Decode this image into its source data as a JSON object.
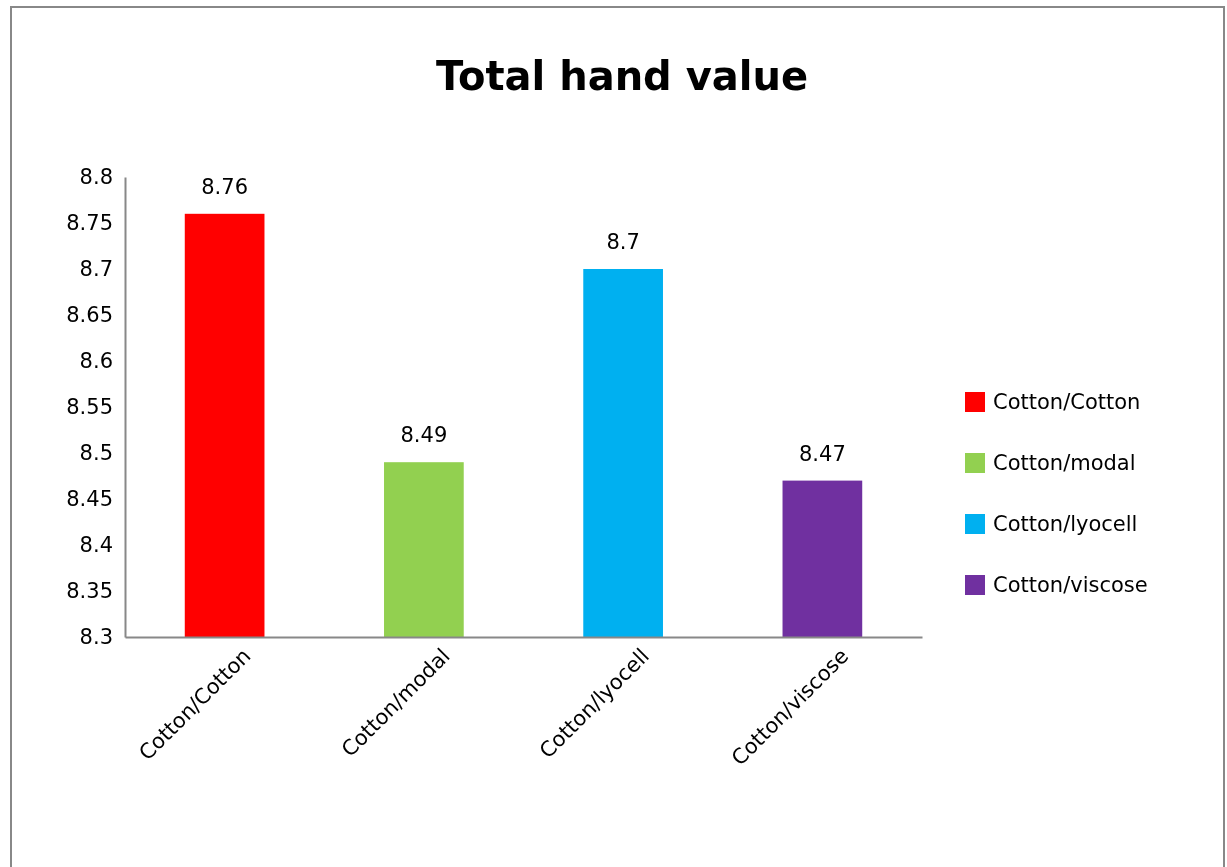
{
  "chart_data": {
    "type": "bar",
    "title": "Total hand value",
    "categories": [
      "Cotton/Cotton",
      "Cotton/modal",
      "Cotton/lyocell",
      "Cotton/viscose"
    ],
    "series": [
      {
        "name": "Cotton/Cotton",
        "color": "#ff0000",
        "values": [
          8.76,
          null,
          null,
          null
        ]
      },
      {
        "name": "Cotton/modal",
        "color": "#92d050",
        "values": [
          null,
          8.49,
          null,
          null
        ]
      },
      {
        "name": "Cotton/lyocell",
        "color": "#00b0f0",
        "values": [
          null,
          null,
          8.7,
          null
        ]
      },
      {
        "name": "Cotton/viscose",
        "color": "#7030a0",
        "values": [
          null,
          null,
          null,
          8.47
        ]
      }
    ],
    "ylim": [
      8.3,
      8.8
    ],
    "yticks": [
      8.3,
      8.35,
      8.4,
      8.45,
      8.5,
      8.55,
      8.6,
      8.65,
      8.7,
      8.75,
      8.8
    ],
    "data_labels": true,
    "legend": "right"
  }
}
